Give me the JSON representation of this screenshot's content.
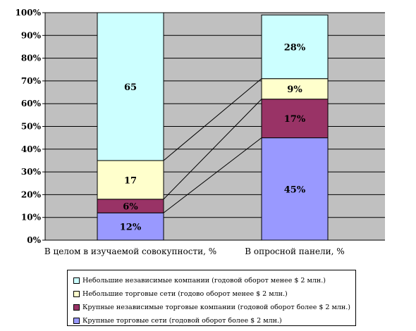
{
  "chart_data": {
    "type": "bar",
    "stacked": true,
    "categories": [
      "В целом в изучаемой совокупности, %",
      "В опросной панели, %"
    ],
    "yticks": [
      "0%",
      "10%",
      "20%",
      "30%",
      "40%",
      "50%",
      "60%",
      "70%",
      "80%",
      "90%",
      "100%"
    ],
    "ylim": [
      0,
      100
    ],
    "grid": true,
    "series": [
      {
        "name": "Крупные торговые сети (годовой оборот более $ 2 млн.)",
        "values": [
          12,
          45
        ],
        "labels": [
          "12%",
          "45%"
        ],
        "color": "#9999ff"
      },
      {
        "name": "Крупные независимые торговые компании (годовой оборот более $ 2 млн.)",
        "values": [
          6,
          17
        ],
        "labels": [
          "6%",
          "17%"
        ],
        "color": "#993366"
      },
      {
        "name": "Небольшие торговые сети (годово оборот менее $ 2 млн.)",
        "values": [
          17,
          9
        ],
        "labels": [
          "17",
          "9%"
        ],
        "color": "#ffffcc"
      },
      {
        "name": "Небольшие независимые компании (годовой оборот менее $ 2  млн.)",
        "values": [
          65,
          28
        ],
        "labels": [
          "65",
          "28%"
        ],
        "color": "#ccffff"
      }
    ],
    "legend_order": [
      3,
      2,
      1,
      0
    ],
    "legend_position": "bottom",
    "plot_background": "#c0c0c0"
  }
}
